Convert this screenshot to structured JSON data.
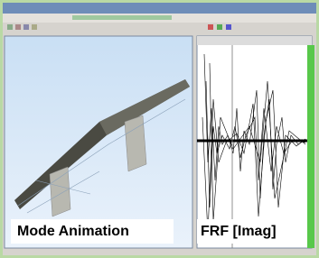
{
  "labels": {
    "left": "Mode Animation",
    "right": "FRF [Imag]"
  }
}
